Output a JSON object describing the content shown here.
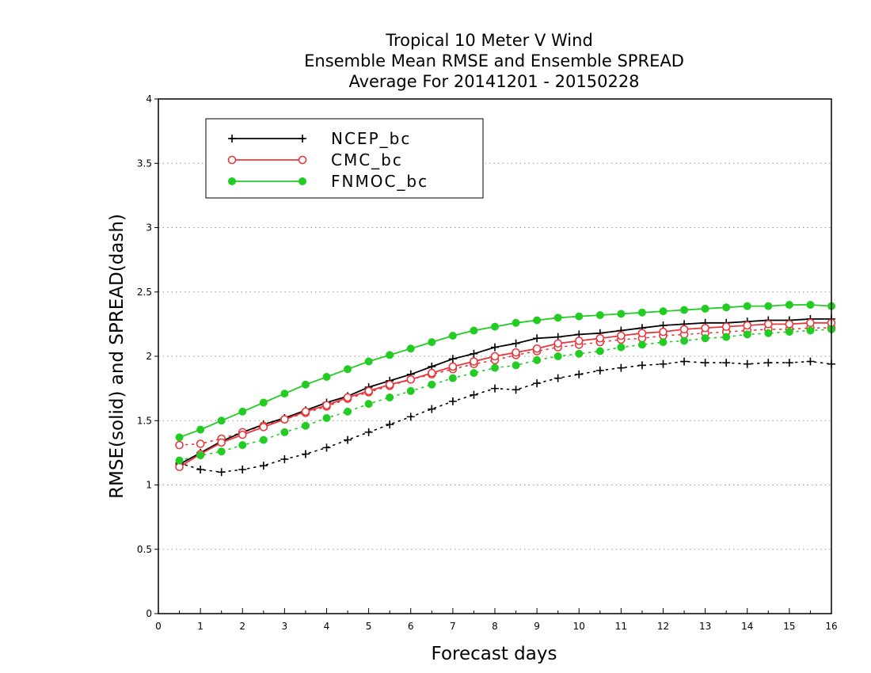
{
  "chart_data": {
    "type": "line",
    "title_lines": [
      "Tropical 10 Meter V Wind",
      "Ensemble Mean RMSE and Ensemble SPREAD",
      "Average For 20141201 - 20150228"
    ],
    "xlabel": "Forecast days",
    "ylabel": "RMSE(solid) and SPREAD(dash)",
    "xlim": [
      0,
      16
    ],
    "ylim": [
      0,
      4
    ],
    "x_ticks": [
      "0",
      "1",
      "2",
      "3",
      "4",
      "5",
      "6",
      "7",
      "8",
      "9",
      "10",
      "11",
      "12",
      "13",
      "14",
      "15",
      "16"
    ],
    "y_ticks": [
      "0",
      "0.5",
      "1",
      "1.5",
      "2",
      "2.5",
      "3",
      "3.5",
      "4"
    ],
    "grid": "horizontal dotted",
    "legend_position": "top-left",
    "x": [
      0.5,
      1,
      1.5,
      2,
      2.5,
      3,
      3.5,
      4,
      4.5,
      5,
      5.5,
      6,
      6.5,
      7,
      7.5,
      8,
      8.5,
      9,
      9.5,
      10,
      10.5,
      11,
      11.5,
      12,
      12.5,
      13,
      13.5,
      14,
      14.5,
      15,
      15.5,
      16
    ],
    "series": [
      {
        "name": "NCEP_bc",
        "color": "#000000",
        "marker": "plus",
        "rmse": [
          1.16,
          1.25,
          1.34,
          1.41,
          1.47,
          1.52,
          1.58,
          1.64,
          1.69,
          1.76,
          1.81,
          1.86,
          1.92,
          1.98,
          2.02,
          2.07,
          2.1,
          2.14,
          2.15,
          2.17,
          2.18,
          2.2,
          2.22,
          2.24,
          2.25,
          2.26,
          2.26,
          2.27,
          2.28,
          2.28,
          2.29,
          2.29
        ],
        "spread": [
          1.17,
          1.12,
          1.1,
          1.12,
          1.15,
          1.2,
          1.24,
          1.29,
          1.35,
          1.41,
          1.47,
          1.53,
          1.59,
          1.65,
          1.7,
          1.75,
          1.74,
          1.79,
          1.83,
          1.86,
          1.89,
          1.91,
          1.93,
          1.94,
          1.96,
          1.95,
          1.95,
          1.94,
          1.95,
          1.95,
          1.96,
          1.94
        ]
      },
      {
        "name": "CMC_bc",
        "color": "#e8383d",
        "marker": "open-circle",
        "rmse": [
          1.14,
          1.24,
          1.33,
          1.39,
          1.45,
          1.51,
          1.57,
          1.62,
          1.68,
          1.73,
          1.78,
          1.82,
          1.87,
          1.92,
          1.96,
          2.0,
          2.03,
          2.06,
          2.1,
          2.12,
          2.14,
          2.16,
          2.18,
          2.19,
          2.21,
          2.22,
          2.23,
          2.24,
          2.25,
          2.25,
          2.26,
          2.26
        ],
        "spread": [
          1.31,
          1.32,
          1.36,
          1.41,
          1.46,
          1.51,
          1.56,
          1.61,
          1.67,
          1.72,
          1.77,
          1.82,
          1.86,
          1.9,
          1.94,
          1.97,
          2.01,
          2.04,
          2.07,
          2.09,
          2.11,
          2.13,
          2.14,
          2.16,
          2.17,
          2.18,
          2.19,
          2.2,
          2.21,
          2.21,
          2.22,
          2.22
        ]
      },
      {
        "name": "FNMOC_bc",
        "color": "#22cc22",
        "marker": "filled-circle",
        "rmse": [
          1.37,
          1.43,
          1.5,
          1.57,
          1.64,
          1.71,
          1.78,
          1.84,
          1.9,
          1.96,
          2.01,
          2.06,
          2.11,
          2.16,
          2.2,
          2.23,
          2.26,
          2.28,
          2.3,
          2.31,
          2.32,
          2.33,
          2.34,
          2.35,
          2.36,
          2.37,
          2.38,
          2.39,
          2.39,
          2.4,
          2.4,
          2.39
        ],
        "spread": [
          1.19,
          1.23,
          1.26,
          1.31,
          1.35,
          1.41,
          1.46,
          1.52,
          1.57,
          1.63,
          1.68,
          1.73,
          1.78,
          1.83,
          1.87,
          1.91,
          1.93,
          1.97,
          2.0,
          2.02,
          2.04,
          2.07,
          2.09,
          2.11,
          2.12,
          2.14,
          2.15,
          2.17,
          2.18,
          2.19,
          2.2,
          2.21
        ]
      }
    ]
  }
}
